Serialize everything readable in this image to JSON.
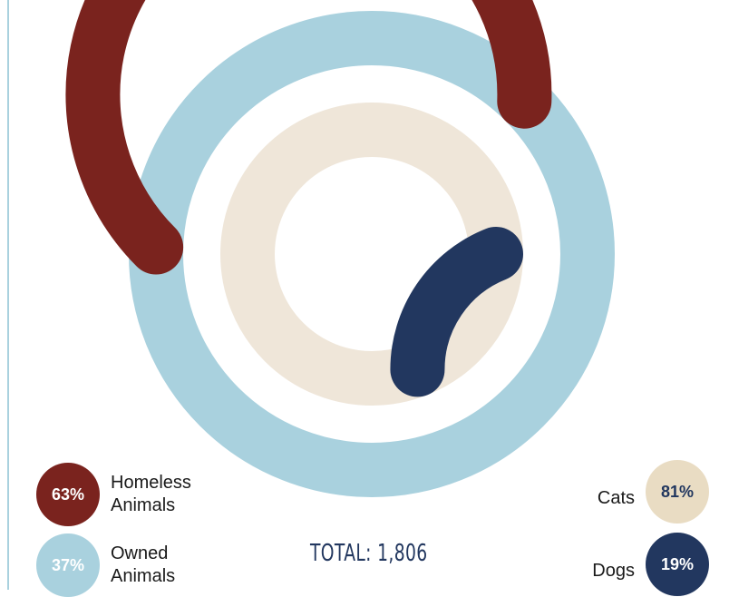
{
  "chart_data": [
    {
      "type": "pie",
      "variant": "radial-progress-ring",
      "ring": "outer",
      "slices": [
        {
          "label": "Homeless Animals",
          "value": 63,
          "color": "#7a231e"
        },
        {
          "label": "Owned Animals",
          "value": 37,
          "color": "#a9d1de"
        }
      ]
    },
    {
      "type": "pie",
      "variant": "radial-progress-ring",
      "ring": "inner",
      "slices": [
        {
          "label": "Cats",
          "value": 81,
          "color": "#efe6d9"
        },
        {
          "label": "Dogs",
          "value": 19,
          "color": "#22375f"
        }
      ]
    }
  ],
  "legend": {
    "homeless": {
      "value": "63%",
      "label_line1": "Homeless",
      "label_line2": "Animals",
      "color": "#7a231e",
      "text_color": "#ffffff"
    },
    "owned": {
      "value": "37%",
      "label_line1": "Owned",
      "label_line2": "Animals",
      "color": "#a9d1de",
      "text_color": "#ffffff"
    },
    "cats": {
      "value": "81%",
      "label": "Cats",
      "color": "#e9dcc3",
      "text_color": "#22375f"
    },
    "dogs": {
      "value": "19%",
      "label": "Dogs",
      "color": "#22375f",
      "text_color": "#ffffff"
    }
  },
  "total": "TOTAL: 1,806",
  "colors": {
    "rule": "#a9d1de",
    "total_text": "#22375f"
  }
}
